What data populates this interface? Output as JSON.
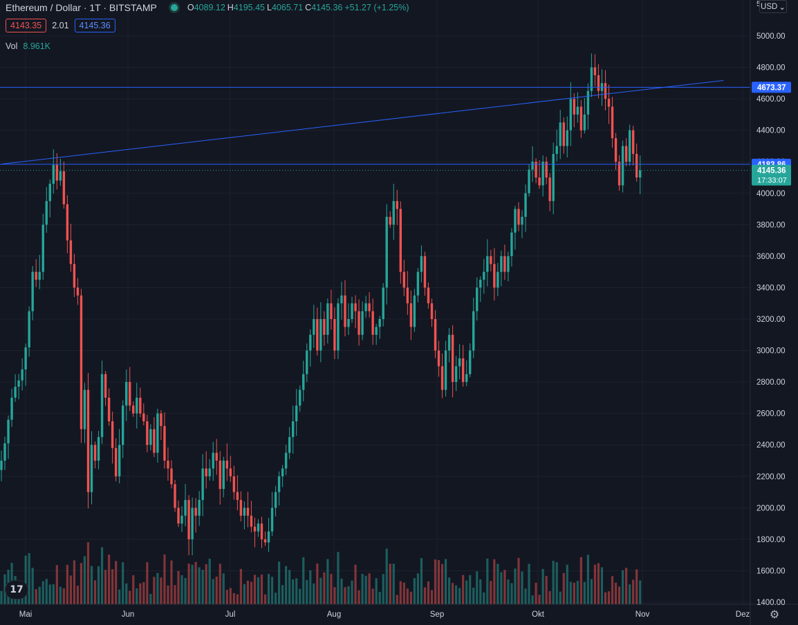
{
  "symbol": {
    "title": "Ethereum / Dollar · 1T · BITSTAMP",
    "open_label": "O",
    "open": "4089.12",
    "high_label": "H",
    "high": "4195.45",
    "low_label": "L",
    "low": "4065.71",
    "close_label": "C",
    "close": "4145.36",
    "change": "+51.27 (+1.25%)",
    "bid": "4143.35",
    "spread": "2.01",
    "ask": "4145.36"
  },
  "volume": {
    "label": "Vol",
    "value": "8.961K"
  },
  "toolbar": {
    "currency": "USD",
    "axis_top": "5"
  },
  "logo": {
    "text": "17"
  },
  "colors": {
    "background": "#131722",
    "up": "#26a69a",
    "down": "#ef5350",
    "line": "#2962ff",
    "grid": "#1e222d"
  },
  "chart_data": {
    "type": "candlestick",
    "y_axis": {
      "ticks": [
        "5000.00",
        "4800.00",
        "4600.00",
        "4400.00",
        "4200.00",
        "4000.00",
        "3800.00",
        "3600.00",
        "3400.00",
        "3200.00",
        "3000.00",
        "2800.00",
        "2600.00",
        "2400.00",
        "2200.00",
        "2000.00",
        "1800.00",
        "1600.00",
        "1400.00"
      ],
      "ylim": [
        1400,
        5000
      ]
    },
    "x_axis": {
      "ticks": [
        "Mai",
        "Jun",
        "Jul",
        "Aug",
        "Sep",
        "Okt",
        "Nov",
        "Dez"
      ]
    },
    "price_labels": [
      {
        "value": "4673.37",
        "price": 4673.37,
        "kind": "line"
      },
      {
        "value": "4183.86",
        "price": 4183.86,
        "kind": "line"
      },
      {
        "value": "4145.36",
        "price": 4145.36,
        "kind": "last",
        "countdown": "17:33:07"
      }
    ],
    "horizontal_lines": [
      4673.37,
      4183.86
    ],
    "trend_line": {
      "start": [
        "Apr 30",
        4185
      ],
      "end": [
        "Nov 24",
        4717
      ]
    },
    "start_date": "2021-04-30",
    "closes": [
      2300,
      2410,
      2560,
      2700,
      2770,
      2810,
      2880,
      3020,
      3250,
      3500,
      3450,
      3500,
      3800,
      3950,
      4060,
      4180,
      4080,
      4140,
      3930,
      3700,
      3550,
      3400,
      3350,
      2500,
      2750,
      2100,
      2400,
      2300,
      2450,
      2850,
      2700,
      2550,
      2380,
      2200,
      2400,
      2650,
      2800,
      2650,
      2600,
      2700,
      2600,
      2550,
      2400,
      2500,
      2350,
      2600,
      2520,
      2300,
      2250,
      2150,
      2000,
      1900,
      1950,
      2050,
      1800,
      2000,
      1950,
      2050,
      2250,
      2200,
      2250,
      2350,
      2300,
      2120,
      2300,
      2250,
      2200,
      2100,
      2050,
      1950,
      2000,
      1950,
      1880,
      1850,
      1900,
      1800,
      1780,
      1850,
      2000,
      2100,
      2200,
      2250,
      2350,
      2450,
      2550,
      2650,
      2750,
      2850,
      3000,
      3100,
      3200,
      3000,
      3200,
      3100,
      3300,
      3200,
      3000,
      3300,
      3350,
      3150,
      3200,
      3300,
      3250,
      3100,
      3250,
      3300,
      3250,
      3100,
      3150,
      3200,
      3400,
      3850,
      3800,
      3950,
      3900,
      3500,
      3400,
      3300,
      3150,
      3350,
      3500,
      3600,
      3400,
      3300,
      3200,
      3000,
      2900,
      2750,
      3000,
      3100,
      2800,
      2900,
      2950,
      2800,
      2850,
      3000,
      3250,
      3400,
      3450,
      3500,
      3600,
      3550,
      3400,
      3500,
      3600,
      3500,
      3600,
      3750,
      3900,
      3800,
      3850,
      4000,
      4150,
      4200,
      4100,
      4050,
      4200,
      4100,
      3950,
      4250,
      4300,
      4450,
      4300,
      4400,
      4600,
      4500,
      4550,
      4400,
      4500,
      4650,
      4800,
      4750,
      4650,
      4700,
      4600,
      4550,
      4350,
      4200,
      4050,
      4300,
      4200,
      4400,
      4250,
      4100,
      4145
    ]
  }
}
